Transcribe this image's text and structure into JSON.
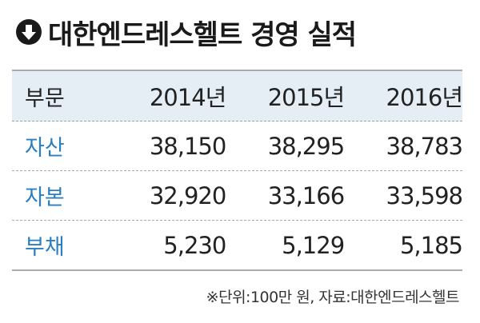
{
  "title": "대한엔드레스헬트 경영 실적",
  "title_icon": "arrow-down-circle-icon",
  "colors": {
    "header_bg": "#e5edf5",
    "label": "#2b7fc1",
    "border": "#a9adb1"
  },
  "chart_data": {
    "type": "table",
    "title": "대한엔드레스헬트 경영 실적",
    "columns": [
      "부문",
      "2014년",
      "2015년",
      "2016년"
    ],
    "rows": [
      {
        "label": "자산",
        "values": [
          "38,150",
          "38,295",
          "38,783"
        ]
      },
      {
        "label": "자본",
        "values": [
          "32,920",
          "33,166",
          "33,598"
        ]
      },
      {
        "label": "부채",
        "values": [
          "5,230",
          "5,129",
          "5,185"
        ]
      }
    ],
    "note": "※단위:100만 원, 자료:대한엔드레스헬트"
  }
}
